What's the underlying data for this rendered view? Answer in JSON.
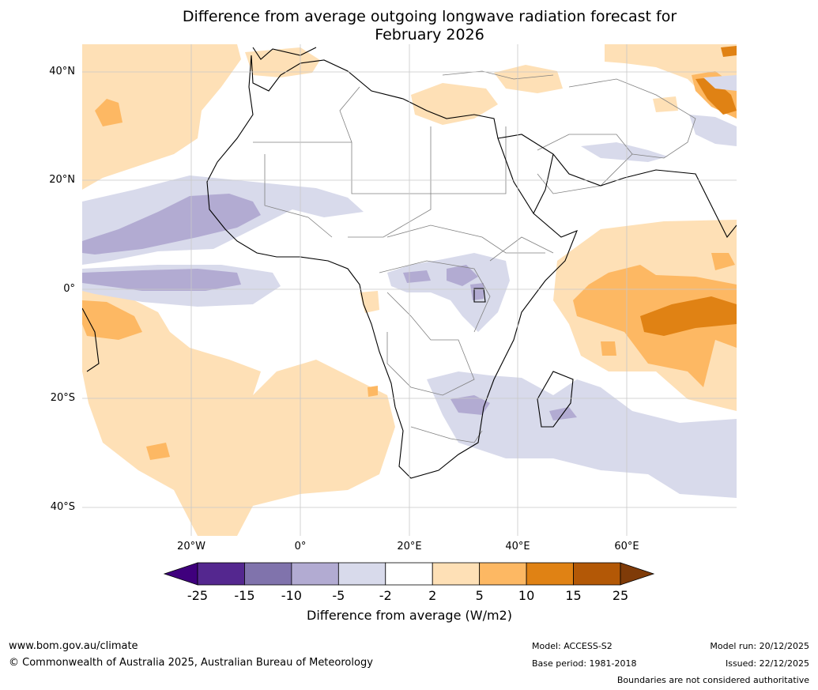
{
  "title_line1": "Difference from average outgoing longwave radiation forecast for",
  "title_line2": "February 2026",
  "lat_labels": [
    "40°N",
    "20°N",
    "0°",
    "20°S",
    "40°S"
  ],
  "lon_labels": [
    "20°W",
    "0°",
    "20°E",
    "40°E",
    "60°E"
  ],
  "legend": {
    "label": "Difference from average (W/m2)",
    "ticks": [
      "-25",
      "-15",
      "-10",
      "-5",
      "-2",
      "2",
      "5",
      "10",
      "15",
      "25"
    ],
    "colors": [
      "#3f007d",
      "#54278f",
      "#8073ac",
      "#b2abd2",
      "#d8daeb",
      "#ffffff",
      "#fee0b6",
      "#fdb863",
      "#e08214",
      "#b35806",
      "#7f3b08"
    ]
  },
  "footer": {
    "url": "www.bom.gov.au/climate",
    "copyright": "© Commonwealth of Australia 2025, Australian Bureau of Meteorology",
    "model": "Model: ACCESS-S2",
    "base_period": "Base period: 1981-2018",
    "model_run": "Model run: 20/12/2025",
    "issued": "Issued: 22/12/2025",
    "disclaimer": "Boundaries are not considered authoritative"
  }
}
